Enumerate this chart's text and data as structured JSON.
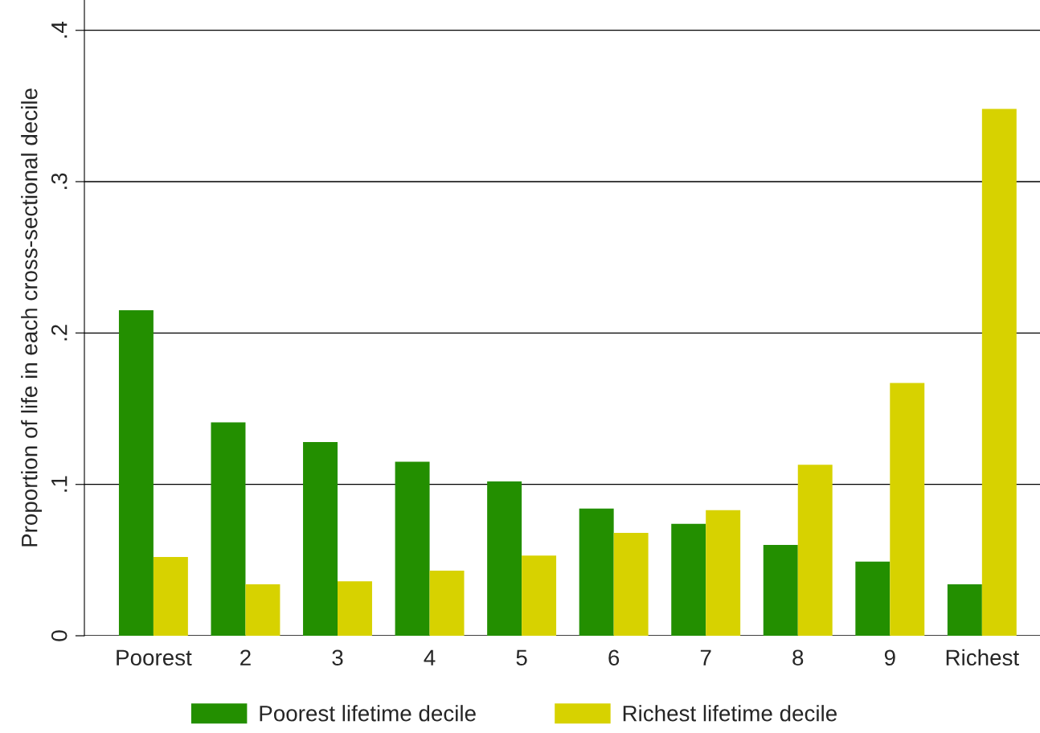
{
  "chart_data": {
    "type": "bar",
    "ylabel": "Proportion of life in each cross-sectional decile",
    "categories": [
      "Poorest",
      "2",
      "3",
      "4",
      "5",
      "6",
      "7",
      "8",
      "9",
      "Richest"
    ],
    "series": [
      {
        "name": "Poorest lifetime decile",
        "color": "#238f00",
        "values": [
          0.215,
          0.141,
          0.128,
          0.115,
          0.102,
          0.084,
          0.074,
          0.06,
          0.049,
          0.034
        ]
      },
      {
        "name": "Richest lifetime decile",
        "color": "#d7d200",
        "values": [
          0.052,
          0.034,
          0.036,
          0.043,
          0.053,
          0.068,
          0.083,
          0.113,
          0.167,
          0.348
        ]
      }
    ],
    "ylim": [
      0,
      0.42
    ],
    "yticks": [
      {
        "value": 0,
        "label": "0"
      },
      {
        "value": 0.1,
        "label": ".1"
      },
      {
        "value": 0.2,
        "label": ".2"
      },
      {
        "value": 0.3,
        "label": ".3"
      },
      {
        "value": 0.4,
        "label": ".4"
      }
    ],
    "grid": "y",
    "legend": "bottom"
  }
}
